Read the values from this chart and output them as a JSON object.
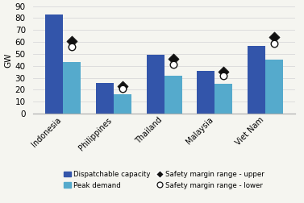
{
  "categories": [
    "Indonesia",
    "Philippines",
    "Thailand",
    "Malaysia",
    "Viet Nam"
  ],
  "dispatchable_capacity": [
    83,
    26,
    49,
    36,
    57
  ],
  "peak_demand": [
    43,
    16,
    32,
    25,
    45
  ],
  "safety_upper": [
    61,
    23,
    46,
    35,
    64
  ],
  "safety_lower": [
    56,
    21,
    41,
    32,
    59
  ],
  "bar_color_dispatch": "#3355AA",
  "bar_color_peak": "#55AACC",
  "marker_upper_color": "#111111",
  "marker_lower_facecolor": "#ffffff",
  "marker_lower_edge": "#111111",
  "grid_color": "#dddddd",
  "bg_color": "#f5f5f0",
  "ylim": [
    0,
    90
  ],
  "yticks": [
    0,
    10,
    20,
    30,
    40,
    50,
    60,
    70,
    80,
    90
  ],
  "ylabel": "GW",
  "legend_labels": [
    "Dispatchable capacity",
    "Peak demand",
    "Safety margin range - upper",
    "Safety margin range - lower"
  ],
  "bar_width": 0.35,
  "figsize": [
    3.77,
    2.52
  ],
  "dpi": 100
}
